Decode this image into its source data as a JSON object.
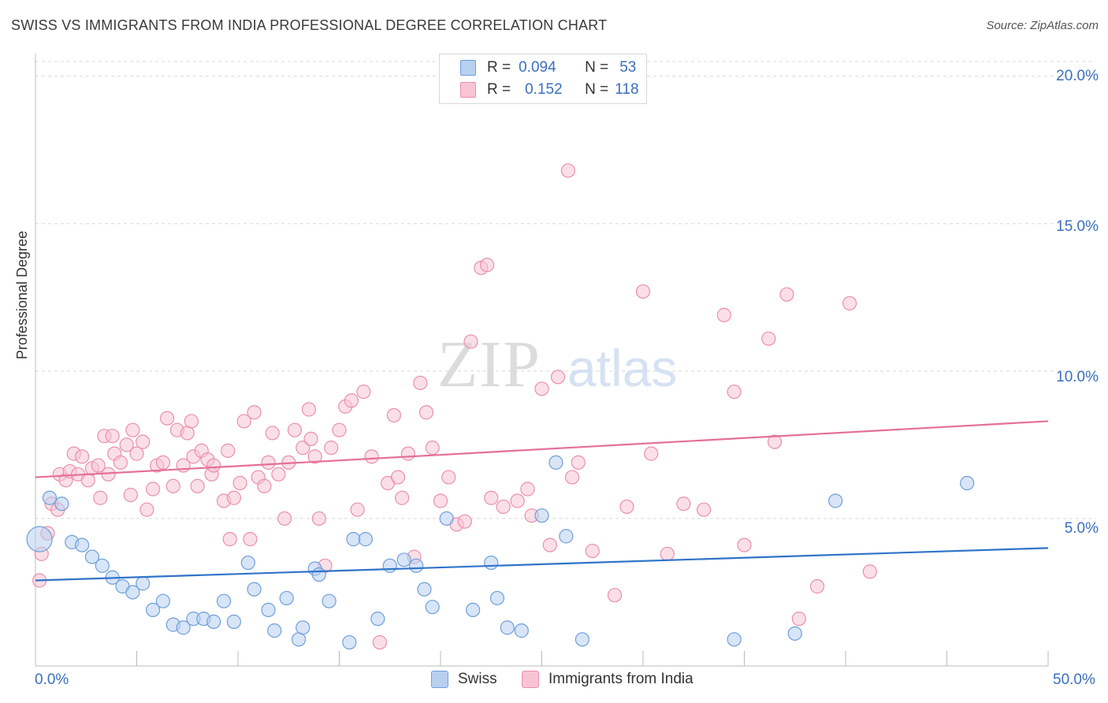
{
  "header": {
    "title": "SWISS VS IMMIGRANTS FROM INDIA PROFESSIONAL DEGREE CORRELATION CHART",
    "source": "Source: ZipAtlas.com"
  },
  "legend": {
    "rows": [
      {
        "r_label": "R =",
        "r_value": "0.094",
        "n_label": "N =",
        "n_value": "53"
      },
      {
        "r_label": "R =",
        "r_value": "0.152",
        "n_label": "N =",
        "n_value": "118"
      }
    ]
  },
  "colors": {
    "swiss_fill": "#b8d0f0",
    "swiss_stroke": "#6e9fdb",
    "swiss_line": "#2f74c9",
    "india_fill": "#f8c4d4",
    "india_stroke": "#ea8fae",
    "india_line": "#e56f98",
    "axis_text": "#3a6fbf",
    "grid": "#d8d8d8"
  },
  "chart_data": {
    "type": "scatter",
    "title": "SWISS VS IMMIGRANTS FROM INDIA PROFESSIONAL DEGREE CORRELATION CHART",
    "xlabel": "",
    "ylabel": "Professional Degree",
    "xlim": [
      0,
      50
    ],
    "ylim": [
      0,
      20.5
    ],
    "x_tick_labels": [
      "0.0%",
      "50.0%"
    ],
    "y_ticks": [
      5,
      10,
      15,
      20
    ],
    "y_tick_labels": [
      "5.0%",
      "10.0%",
      "15.0%",
      "20.0%"
    ],
    "grid": true,
    "legend_position": "top-center",
    "series": [
      {
        "name": "Swiss",
        "trend": [
          [
            0,
            2.9
          ],
          [
            50,
            4.0
          ]
        ],
        "points": [
          [
            0.2,
            4.3
          ],
          [
            0.7,
            5.7
          ],
          [
            1.3,
            5.5
          ],
          [
            1.8,
            4.2
          ],
          [
            2.3,
            4.1
          ],
          [
            2.8,
            3.7
          ],
          [
            3.3,
            3.4
          ],
          [
            3.8,
            3.0
          ],
          [
            4.3,
            2.7
          ],
          [
            4.8,
            2.5
          ],
          [
            5.3,
            2.8
          ],
          [
            5.8,
            1.9
          ],
          [
            6.3,
            2.2
          ],
          [
            6.8,
            1.4
          ],
          [
            7.3,
            1.3
          ],
          [
            7.8,
            1.6
          ],
          [
            8.3,
            1.6
          ],
          [
            8.8,
            1.5
          ],
          [
            9.3,
            2.2
          ],
          [
            9.8,
            1.5
          ],
          [
            10.5,
            3.5
          ],
          [
            10.8,
            2.6
          ],
          [
            11.5,
            1.9
          ],
          [
            11.8,
            1.2
          ],
          [
            12.4,
            2.3
          ],
          [
            13.0,
            0.9
          ],
          [
            13.2,
            1.3
          ],
          [
            13.8,
            3.3
          ],
          [
            14.0,
            3.1
          ],
          [
            14.5,
            2.2
          ],
          [
            15.5,
            0.8
          ],
          [
            15.7,
            4.3
          ],
          [
            16.3,
            4.3
          ],
          [
            16.9,
            1.6
          ],
          [
            17.5,
            3.4
          ],
          [
            18.2,
            3.6
          ],
          [
            18.8,
            3.4
          ],
          [
            19.2,
            2.6
          ],
          [
            19.6,
            2.0
          ],
          [
            20.3,
            5.0
          ],
          [
            21.6,
            1.9
          ],
          [
            22.5,
            3.5
          ],
          [
            22.8,
            2.3
          ],
          [
            23.3,
            1.3
          ],
          [
            24.0,
            1.2
          ],
          [
            25.0,
            5.1
          ],
          [
            25.7,
            6.9
          ],
          [
            26.2,
            4.4
          ],
          [
            27.0,
            0.9
          ],
          [
            34.5,
            0.9
          ],
          [
            37.5,
            1.1
          ],
          [
            39.5,
            5.6
          ],
          [
            46.0,
            6.2
          ]
        ]
      },
      {
        "name": "Immigrants from India",
        "trend": [
          [
            0,
            6.4
          ],
          [
            50,
            8.3
          ]
        ],
        "points": [
          [
            0.2,
            2.9
          ],
          [
            0.3,
            3.8
          ],
          [
            0.6,
            4.5
          ],
          [
            0.8,
            5.5
          ],
          [
            1.1,
            5.3
          ],
          [
            1.2,
            6.5
          ],
          [
            1.5,
            6.3
          ],
          [
            1.7,
            6.6
          ],
          [
            1.9,
            7.2
          ],
          [
            2.1,
            6.5
          ],
          [
            2.3,
            7.1
          ],
          [
            2.6,
            6.3
          ],
          [
            2.8,
            6.7
          ],
          [
            3.1,
            6.8
          ],
          [
            3.2,
            5.7
          ],
          [
            3.4,
            7.8
          ],
          [
            3.6,
            6.5
          ],
          [
            3.8,
            7.8
          ],
          [
            3.9,
            7.2
          ],
          [
            4.2,
            6.9
          ],
          [
            4.5,
            7.5
          ],
          [
            4.7,
            5.8
          ],
          [
            4.8,
            8.0
          ],
          [
            5.0,
            7.2
          ],
          [
            5.3,
            7.6
          ],
          [
            5.5,
            5.3
          ],
          [
            5.8,
            6.0
          ],
          [
            6.0,
            6.8
          ],
          [
            6.3,
            6.9
          ],
          [
            6.5,
            8.4
          ],
          [
            6.8,
            6.1
          ],
          [
            7.0,
            8.0
          ],
          [
            7.3,
            6.8
          ],
          [
            7.5,
            7.9
          ],
          [
            7.7,
            8.3
          ],
          [
            7.8,
            7.1
          ],
          [
            8.0,
            6.1
          ],
          [
            8.2,
            7.3
          ],
          [
            8.5,
            7.0
          ],
          [
            8.7,
            6.5
          ],
          [
            8.8,
            6.8
          ],
          [
            9.3,
            5.6
          ],
          [
            9.5,
            7.3
          ],
          [
            9.6,
            4.3
          ],
          [
            9.8,
            5.7
          ],
          [
            10.1,
            6.2
          ],
          [
            10.3,
            8.3
          ],
          [
            10.6,
            4.3
          ],
          [
            10.8,
            8.6
          ],
          [
            11.0,
            6.4
          ],
          [
            11.3,
            6.1
          ],
          [
            11.5,
            6.9
          ],
          [
            11.7,
            7.9
          ],
          [
            12.0,
            6.5
          ],
          [
            12.3,
            5.0
          ],
          [
            12.5,
            6.9
          ],
          [
            12.8,
            8.0
          ],
          [
            13.2,
            7.4
          ],
          [
            13.5,
            8.7
          ],
          [
            13.6,
            7.7
          ],
          [
            13.8,
            7.1
          ],
          [
            14.0,
            5.0
          ],
          [
            14.3,
            3.4
          ],
          [
            14.6,
            7.4
          ],
          [
            15.0,
            8.0
          ],
          [
            15.3,
            8.8
          ],
          [
            15.6,
            9.0
          ],
          [
            15.9,
            5.3
          ],
          [
            16.2,
            9.3
          ],
          [
            16.6,
            7.1
          ],
          [
            17.0,
            0.8
          ],
          [
            17.4,
            6.2
          ],
          [
            17.7,
            8.5
          ],
          [
            17.9,
            6.4
          ],
          [
            18.1,
            5.7
          ],
          [
            18.4,
            7.2
          ],
          [
            18.7,
            3.7
          ],
          [
            19.0,
            9.6
          ],
          [
            19.3,
            8.6
          ],
          [
            19.6,
            7.4
          ],
          [
            20.0,
            5.6
          ],
          [
            20.4,
            6.4
          ],
          [
            20.8,
            4.8
          ],
          [
            21.2,
            4.9
          ],
          [
            21.5,
            11.0
          ],
          [
            22.0,
            13.5
          ],
          [
            22.3,
            13.6
          ],
          [
            22.5,
            5.7
          ],
          [
            23.1,
            5.4
          ],
          [
            23.8,
            5.6
          ],
          [
            24.3,
            6.0
          ],
          [
            24.5,
            5.1
          ],
          [
            25.0,
            9.4
          ],
          [
            25.4,
            4.1
          ],
          [
            25.8,
            9.8
          ],
          [
            26.3,
            16.8
          ],
          [
            26.5,
            6.4
          ],
          [
            26.8,
            6.9
          ],
          [
            27.5,
            3.9
          ],
          [
            28.6,
            2.4
          ],
          [
            29.2,
            5.4
          ],
          [
            30.0,
            12.7
          ],
          [
            30.4,
            7.2
          ],
          [
            31.2,
            3.8
          ],
          [
            32.0,
            5.5
          ],
          [
            33.0,
            5.3
          ],
          [
            34.0,
            11.9
          ],
          [
            34.5,
            9.3
          ],
          [
            35.0,
            4.1
          ],
          [
            36.2,
            11.1
          ],
          [
            36.5,
            7.6
          ],
          [
            37.1,
            12.6
          ],
          [
            37.7,
            1.6
          ],
          [
            38.6,
            2.7
          ],
          [
            40.2,
            12.3
          ],
          [
            41.2,
            3.2
          ]
        ]
      }
    ]
  },
  "bottom_legend": {
    "swiss_label": "Swiss",
    "india_label": "Immigrants from India"
  }
}
